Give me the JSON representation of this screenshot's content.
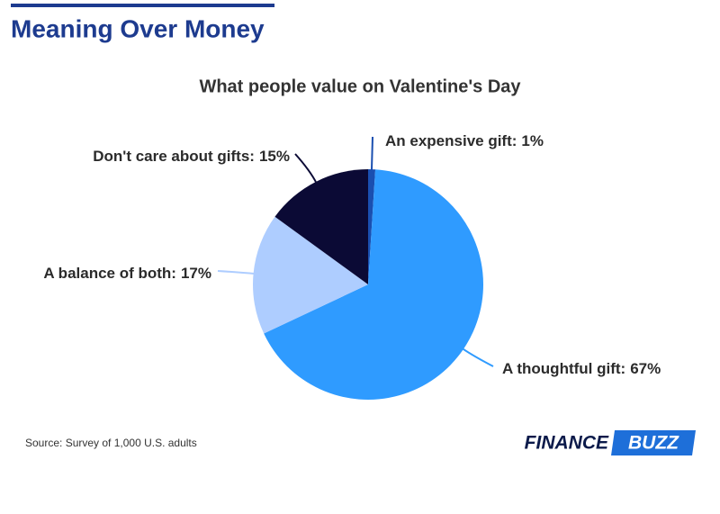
{
  "header": {
    "title": "Meaning Over Money"
  },
  "chart_data": {
    "type": "pie",
    "title": "What people value on Valentine's Day",
    "categories": [
      "An expensive gift:",
      "A thoughtful gift:",
      "A balance of both:",
      "Don't care about gifts:"
    ],
    "values": [
      1,
      67,
      17,
      15
    ],
    "value_labels": [
      "1%",
      "67%",
      "17%",
      "15%"
    ],
    "colors": [
      "#1a4fb0",
      "#2f9bff",
      "#aecdff",
      "#0b0a35"
    ]
  },
  "source": "Source: Survey of 1,000 U.S. adults",
  "logo": {
    "left": "FINANCE",
    "right": "BUZZ"
  }
}
